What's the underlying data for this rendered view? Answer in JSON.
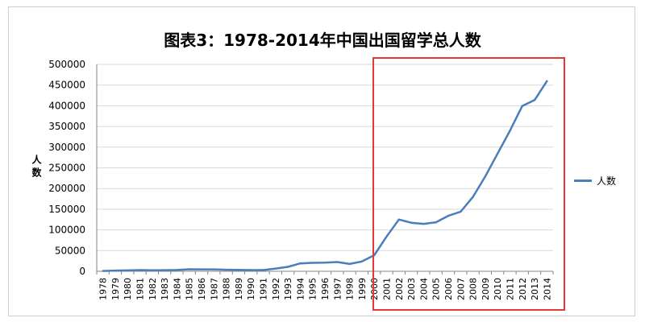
{
  "chart_data": {
    "type": "line",
    "title": "图表3：1978-2014年中国出国留学总人数",
    "ylabel": "人数",
    "xlabel": "",
    "ylim": [
      0,
      500000
    ],
    "yticks": [
      0,
      50000,
      100000,
      150000,
      200000,
      250000,
      300000,
      350000,
      400000,
      450000,
      500000
    ],
    "categories": [
      "1978",
      "1979",
      "1980",
      "1981",
      "1982",
      "1983",
      "1984",
      "1985",
      "1986",
      "1987",
      "1988",
      "1989",
      "1990",
      "1991",
      "1992",
      "1993",
      "1994",
      "1995",
      "1996",
      "1997",
      "1998",
      "1999",
      "2000",
      "2001",
      "2002",
      "2003",
      "2004",
      "2005",
      "2006",
      "2007",
      "2008",
      "2009",
      "2010",
      "2011",
      "2012",
      "2013",
      "2014"
    ],
    "series": [
      {
        "name": "人数",
        "color": "#4a7ebb",
        "values": [
          860,
          1777,
          2124,
          2922,
          2326,
          2633,
          3073,
          4888,
          4676,
          4703,
          3786,
          3329,
          2950,
          2900,
          6540,
          10742,
          19071,
          20381,
          20905,
          22410,
          17622,
          23749,
          38989,
          83973,
          125179,
          117307,
          114682,
          118515,
          134000,
          144000,
          179800,
          229300,
          284700,
          339700,
          399600,
          413900,
          459800
        ]
      }
    ],
    "grid": true,
    "legend": "right",
    "highlight": {
      "from": "2000",
      "to": "2014",
      "color": "#e53935"
    }
  }
}
